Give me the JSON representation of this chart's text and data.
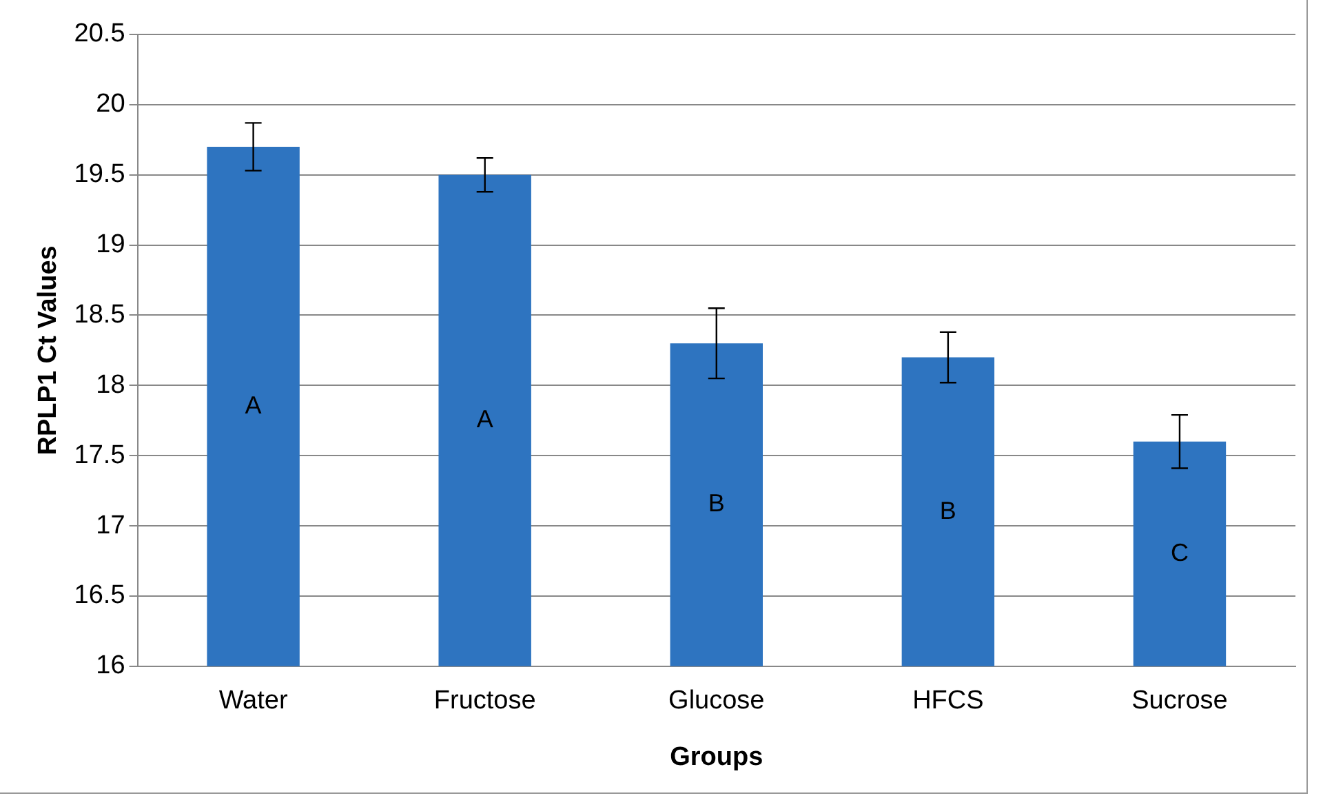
{
  "chart_data": {
    "type": "bar",
    "xlabel": "Groups",
    "ylabel": "RPLP1 Ct Values",
    "categories": [
      "Water",
      "Fructose",
      "Glucose",
      "HFCS",
      "Sucrose"
    ],
    "values": [
      19.7,
      19.5,
      18.3,
      18.2,
      17.6
    ],
    "errors": [
      0.17,
      0.12,
      0.25,
      0.18,
      0.19
    ],
    "color": "#2e74c0",
    "ylim": [
      16,
      20.5
    ],
    "yticks": [
      16,
      16.5,
      17,
      17.5,
      18,
      18.5,
      19,
      19.5,
      20,
      20.5
    ],
    "grid": "y",
    "legend": false,
    "annotations": [
      "A",
      "A",
      "B",
      "B",
      "C"
    ]
  }
}
